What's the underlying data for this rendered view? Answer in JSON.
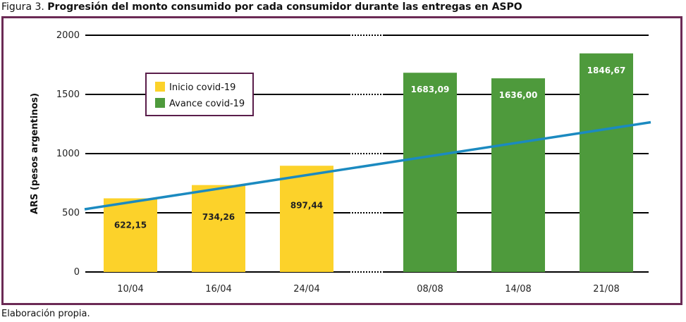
{
  "figure": {
    "prefix": "Figura 3.",
    "title": "Progresión del monto consumido por cada consumidor durante las entregas en ASPO",
    "source": "Elaboración propia.",
    "frame_color": "#6b2a55"
  },
  "chart_data": {
    "type": "bar",
    "title": "Progresión del monto consumido por cada consumidor durante las entregas en ASPO",
    "xlabel": "",
    "ylabel": "ARS (pesos argentinos)",
    "ylim": [
      0,
      2000
    ],
    "yticks": [
      0,
      500,
      1000,
      1500,
      2000
    ],
    "grid": true,
    "legend_position": "top-left",
    "categories": [
      "10/04",
      "16/04",
      "24/04",
      "08/08",
      "14/08",
      "21/08"
    ],
    "series": [
      {
        "name": "Inicio covid-19",
        "color": "#fcd22a",
        "values": [
          622.15,
          734.26,
          897.44,
          null,
          null,
          null
        ],
        "labels": [
          "622,15",
          "734,26",
          "897,44",
          "",
          "",
          ""
        ]
      },
      {
        "name": "Avance covid-19",
        "color": "#4e9a3c",
        "values": [
          null,
          null,
          null,
          1683.09,
          1636.0,
          1846.67
        ],
        "labels": [
          "",
          "",
          "",
          "1683,09",
          "1636,00",
          "1846,67"
        ]
      }
    ],
    "trendline": {
      "color": "#1b8ac0",
      "y_start": 530,
      "y_end": 1265
    },
    "axis_break": true
  }
}
